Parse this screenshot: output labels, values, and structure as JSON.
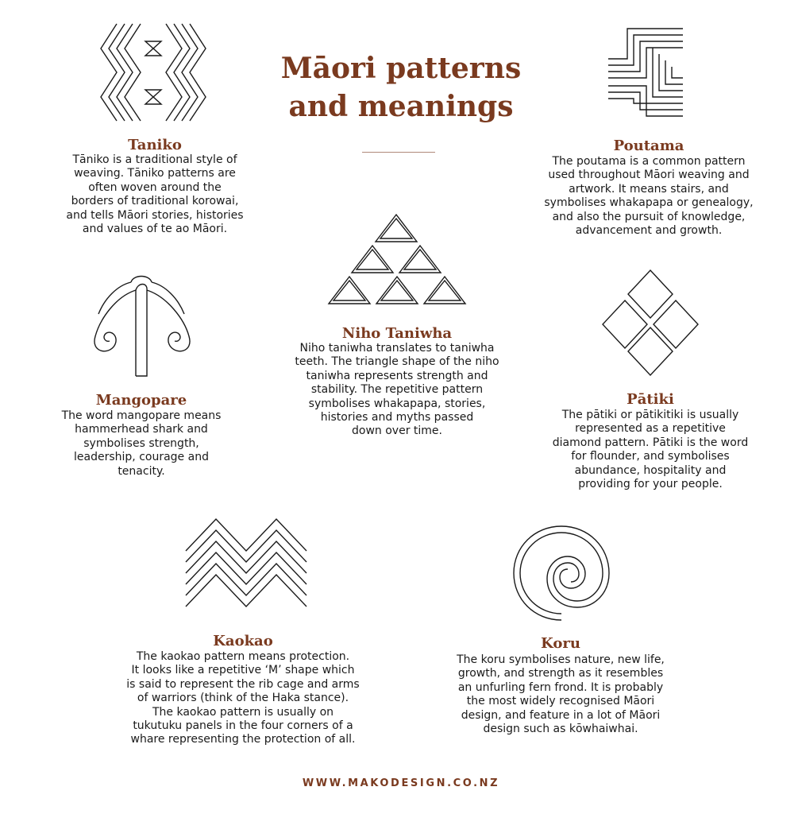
{
  "colors": {
    "accent": "#7a3a1f",
    "ink": "#1a1a1a",
    "background": "#ffffff"
  },
  "title": {
    "line1": "Māori patterns",
    "line2": "and meanings"
  },
  "patterns": {
    "taniko": {
      "icon": "taniko-pattern-icon",
      "heading": "Taniko",
      "lines": [
        "Tāniko is a traditional style of",
        "weaving. Tāniko patterns are",
        "often woven around the",
        "borders of traditional korowai,",
        "and tells Māori stories, histories",
        "and values of te ao Māori."
      ]
    },
    "poutama": {
      "icon": "poutama-pattern-icon",
      "heading": "Poutama",
      "lines": [
        "The poutama is a common pattern",
        "used throughout Māori weaving and",
        "artwork. It means stairs, and",
        "symbolises whakapapa or genealogy,",
        "and also the pursuit of knowledge,",
        "advancement and growth."
      ]
    },
    "niho_taniwha": {
      "icon": "niho-taniwha-pattern-icon",
      "heading": "Niho Taniwha",
      "lines": [
        "Niho taniwha translates to taniwha",
        "teeth. The triangle shape of the niho",
        "taniwha represents strength and",
        "stability. The repetitive pattern",
        "symbolises whakapapa, stories,",
        "histories and myths passed",
        "down over time."
      ]
    },
    "mangopare": {
      "icon": "mangopare-pattern-icon",
      "heading": "Mangopare",
      "lines": [
        "The word mangopare means",
        "hammerhead shark and",
        "symbolises strength,",
        "leadership, courage and",
        "tenacity."
      ]
    },
    "patiki": {
      "icon": "patiki-pattern-icon",
      "heading": "Pātiki",
      "lines": [
        "The pātiki or pātikitiki is usually",
        "represented as a repetitive",
        "diamond pattern. Pātiki is the word",
        "for flounder, and symbolises",
        "abundance, hospitality and",
        "providing for your people."
      ]
    },
    "kaokao": {
      "icon": "kaokao-pattern-icon",
      "heading": "Kaokao",
      "lines": [
        "The kaokao pattern means protection.",
        "It looks like a repetitive ‘M’ shape which",
        "is said to represent the rib cage and arms",
        "of warriors (think of the Haka stance).",
        "The kaokao pattern is usually on",
        "tukutuku panels in the four corners of a",
        "whare representing the protection of all."
      ]
    },
    "koru": {
      "icon": "koru-pattern-icon",
      "heading": "Koru",
      "lines": [
        "The koru symbolises nature, new life,",
        "growth, and strength as it resembles",
        "an unfurling fern frond. It is probably",
        "the most widely recognised Māori",
        "design, and feature in a lot of Māori",
        "design such as kōwhaiwhai."
      ]
    }
  },
  "footer": {
    "website": "WWW.MAKODESIGN.CO.NZ"
  }
}
